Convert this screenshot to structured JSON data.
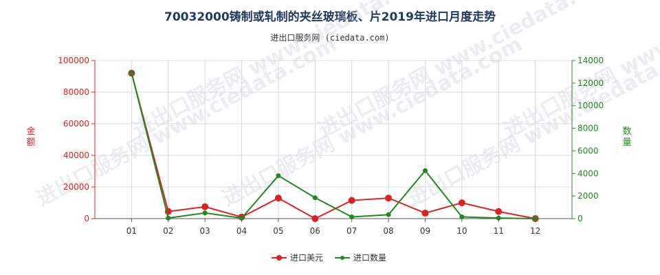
{
  "chart_data": {
    "type": "line",
    "title": "70032000铸制或轧制的夹丝玻璃板、片2019年进口月度走势",
    "subtitle": "进出口服务网 (ciedata.com)",
    "watermark": "进出口服务网 www.ciedata.com",
    "categories": [
      "01",
      "02",
      "03",
      "04",
      "05",
      "06",
      "07",
      "08",
      "09",
      "10",
      "11",
      "12"
    ],
    "y_left": {
      "label": "金额",
      "ylim": [
        0,
        100000
      ],
      "ticks": [
        "0",
        "20000",
        "40000",
        "60000",
        "80000",
        "100000"
      ]
    },
    "y_right": {
      "label": "数量",
      "ylim": [
        0,
        14000
      ],
      "ticks": [
        "0",
        "2000",
        "4000",
        "6000",
        "8000",
        "10000",
        "12000",
        "14000"
      ]
    },
    "grid": true,
    "legend_position": "bottom",
    "series": [
      {
        "name": "进口美元",
        "axis": "left",
        "color": "#e02020",
        "values": [
          92000,
          4500,
          7500,
          1000,
          13000,
          0,
          11500,
          13000,
          3500,
          10000,
          4500,
          0
        ]
      },
      {
        "name": "进口数量",
        "axis": "right",
        "color": "#1e8a1e",
        "values": [
          12900,
          50,
          500,
          50,
          3800,
          1850,
          150,
          350,
          4250,
          150,
          50,
          0
        ]
      }
    ]
  }
}
